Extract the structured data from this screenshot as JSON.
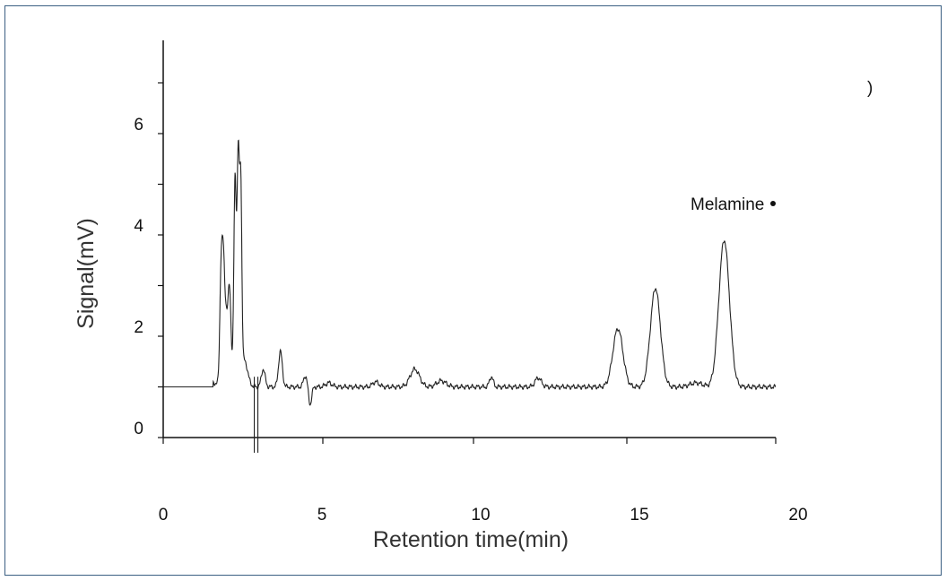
{
  "chart_data": {
    "type": "line",
    "title": "",
    "xlabel": "Retention time(min)",
    "ylabel": "Signal(mV)",
    "xlim": [
      0,
      20
    ],
    "ylim": [
      0,
      7
    ],
    "x_ticks": [
      {
        "value": 0,
        "label": "0"
      },
      {
        "value": 5,
        "label": "5"
      },
      {
        "value": 10,
        "label": "10"
      },
      {
        "value": 15,
        "label": "15"
      },
      {
        "value": 20,
        "label": "20"
      }
    ],
    "y_ticks": [
      {
        "value": 0,
        "label": "0"
      },
      {
        "value": 2,
        "label": "2"
      },
      {
        "value": 4,
        "label": "4"
      },
      {
        "value": 6,
        "label": "6"
      }
    ],
    "grid": false,
    "legend": "none",
    "annotations": [
      {
        "text": "Melamine",
        "x": 17.6,
        "y": 4.55
      },
      {
        "text": ")",
        "x": 23.2,
        "y": 6.35
      }
    ],
    "series": [
      {
        "baseline": 1.0,
        "peaks": [
          {
            "rt": 1.85,
            "height": 2.1,
            "width": 0.04
          },
          {
            "rt": 1.92,
            "height": 2.0,
            "width": 0.04
          },
          {
            "rt": 2.0,
            "height": 1.3,
            "width": 0.05
          },
          {
            "rt": 2.12,
            "height": 1.9,
            "width": 0.05
          },
          {
            "rt": 2.3,
            "height": 4.1,
            "width": 0.04
          },
          {
            "rt": 2.4,
            "height": 4.3,
            "width": 0.035
          },
          {
            "rt": 2.48,
            "height": 3.8,
            "width": 0.035
          },
          {
            "rt": 2.6,
            "height": 0.5,
            "width": 0.1
          },
          {
            "rt": 3.2,
            "height": 0.35,
            "width": 0.06
          },
          {
            "rt": 3.75,
            "height": 0.7,
            "width": 0.06
          },
          {
            "rt": 4.55,
            "height": 0.22,
            "width": 0.06
          },
          {
            "rt": 4.7,
            "height": -0.35,
            "width": 0.05
          },
          {
            "rt": 5.3,
            "height": 0.08,
            "width": 0.1
          },
          {
            "rt": 6.8,
            "height": 0.1,
            "width": 0.1
          },
          {
            "rt": 8.05,
            "height": 0.35,
            "width": 0.15
          },
          {
            "rt": 8.9,
            "height": 0.12,
            "width": 0.15
          },
          {
            "rt": 10.5,
            "height": 0.2,
            "width": 0.06
          },
          {
            "rt": 12.0,
            "height": 0.18,
            "width": 0.1
          },
          {
            "rt": 14.55,
            "height": 1.15,
            "width": 0.16
          },
          {
            "rt": 15.75,
            "height": 1.95,
            "width": 0.16
          },
          {
            "rt": 17.05,
            "height": 0.08,
            "width": 0.2
          },
          {
            "rt": 17.95,
            "height": 2.9,
            "width": 0.17
          }
        ],
        "spikes": [
          {
            "x": 3.0,
            "low": -0.3,
            "high": 1.2
          }
        ]
      }
    ]
  }
}
